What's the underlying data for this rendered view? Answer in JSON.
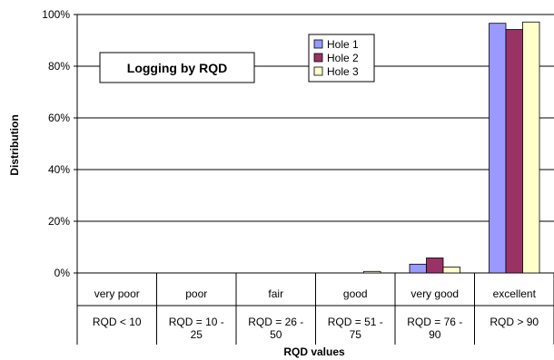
{
  "chart_data": {
    "type": "bar",
    "title": "Logging by RQD",
    "xlabel": "RQD values",
    "ylabel": "Distribution",
    "ylim": [
      0,
      100
    ],
    "yticks": [
      "0%",
      "20%",
      "40%",
      "60%",
      "80%",
      "100%"
    ],
    "grid": true,
    "legend_position": "top-center",
    "categories": [
      {
        "name": "very poor",
        "range": [
          "RQD < 10"
        ]
      },
      {
        "name": "poor",
        "range": [
          "RQD = 10 -",
          "25"
        ]
      },
      {
        "name": "fair",
        "range": [
          "RQD = 26 -",
          "50"
        ]
      },
      {
        "name": "good",
        "range": [
          "RQD = 51 -",
          "75"
        ]
      },
      {
        "name": "very good",
        "range": [
          "RQD = 76 -",
          "90"
        ]
      },
      {
        "name": "excellent",
        "range": [
          "RQD > 90"
        ]
      }
    ],
    "series": [
      {
        "name": "Hole 1",
        "color": "#9999ff",
        "values": [
          0,
          0,
          0,
          0,
          3.4,
          96.6
        ]
      },
      {
        "name": "Hole 2",
        "color": "#993366",
        "values": [
          0,
          0,
          0,
          0,
          5.8,
          94.2
        ]
      },
      {
        "name": "Hole 3",
        "color": "#ffffcc",
        "values": [
          0,
          0,
          0,
          0.6,
          2.3,
          97.1
        ]
      }
    ]
  }
}
